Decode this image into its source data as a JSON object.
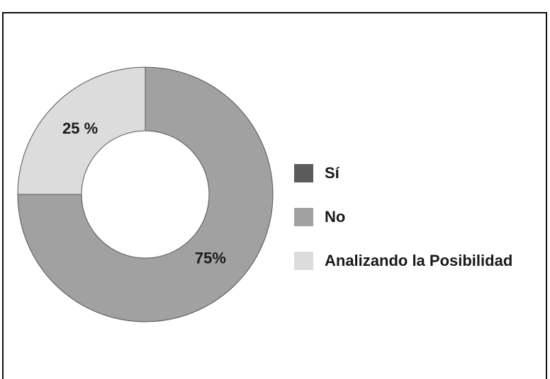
{
  "chart_data": {
    "type": "donut",
    "categories": [
      "Sí",
      "No",
      "Analizando la Posibilidad"
    ],
    "values": [
      0,
      75,
      25
    ],
    "value_labels": [
      null,
      "75%",
      "25 %"
    ],
    "colors": [
      "#5b5b5b",
      "#a1a1a1",
      "#dcdcdc"
    ],
    "legend": "right"
  }
}
